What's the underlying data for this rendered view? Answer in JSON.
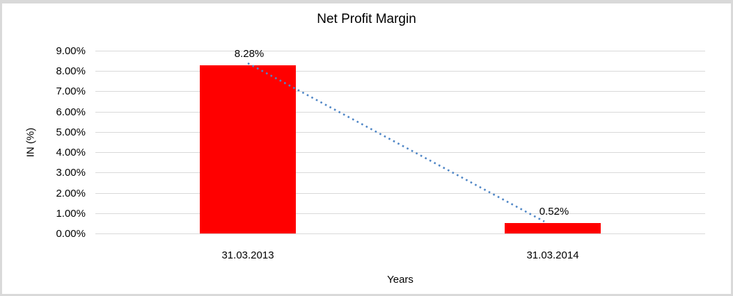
{
  "chart_data": {
    "type": "bar",
    "title": "Net Profit Margin",
    "categories": [
      "31.03.2013",
      "31.03.2014"
    ],
    "values": [
      8.28,
      0.52
    ],
    "data_labels": [
      "8.28%",
      "0.52%"
    ],
    "xlabel": "Years",
    "ylabel": "IN (%)",
    "ylim": [
      0,
      9
    ],
    "ytick_labels": [
      "9.00%",
      "8.00%",
      "7.00%",
      "6.00%",
      "5.00%",
      "4.00%",
      "3.00%",
      "2.00%",
      "1.00%",
      "0.00%"
    ],
    "grid": true,
    "legend": "none",
    "bar_color": "#ff0000",
    "gridline_color": "#d9d9d9",
    "frame_border_color": "#d9d9d9",
    "trendline": {
      "type": "linear",
      "style": "dotted",
      "color": "#4f86c6"
    }
  }
}
